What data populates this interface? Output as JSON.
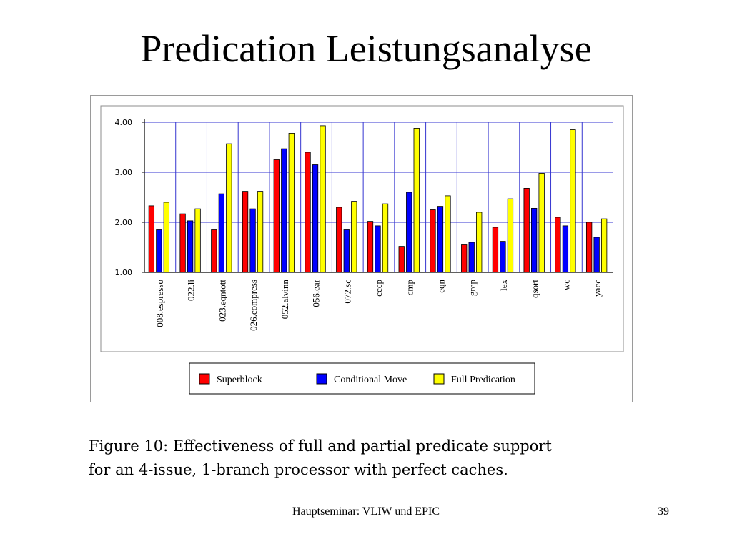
{
  "slide": {
    "title": "Predication Leistungsanalyse",
    "caption": "Figure 10: Effectiveness of full and partial predicate support\nfor an 4-issue, 1-branch processor with perfect caches.",
    "footer": "Hauptseminar: VLIW und EPIC",
    "page_number": "39"
  },
  "chart_data": {
    "type": "bar",
    "title": "",
    "xlabel": "",
    "ylabel": "",
    "ylim": [
      1.0,
      4.0
    ],
    "yticks": [
      "1.00",
      "2.00",
      "3.00",
      "4.00"
    ],
    "grid": true,
    "legend_position": "bottom",
    "categories": [
      "008.espresso",
      "022.li",
      "023.eqntott",
      "026.compress",
      "052.alvinn",
      "056.ear",
      "072.sc",
      "cccp",
      "cmp",
      "eqn",
      "grep",
      "lex",
      "qsort",
      "wc",
      "yacc"
    ],
    "series": [
      {
        "name": "Superblock",
        "color": "#ff0000",
        "values": [
          2.33,
          2.17,
          1.85,
          2.62,
          3.25,
          3.4,
          2.3,
          2.02,
          1.52,
          2.25,
          1.55,
          1.9,
          2.68,
          2.1,
          2.0
        ]
      },
      {
        "name": "Conditional Move",
        "color": "#0000ff",
        "values": [
          1.85,
          2.03,
          2.57,
          2.27,
          3.47,
          3.15,
          1.85,
          1.93,
          2.6,
          2.32,
          1.6,
          1.62,
          2.28,
          1.93,
          1.7
        ]
      },
      {
        "name": "Full Predication",
        "color": "#ffff00",
        "values": [
          2.4,
          2.27,
          3.57,
          2.62,
          3.78,
          3.93,
          2.42,
          2.37,
          3.88,
          2.53,
          2.2,
          2.47,
          2.98,
          3.85,
          2.07
        ]
      }
    ]
  }
}
